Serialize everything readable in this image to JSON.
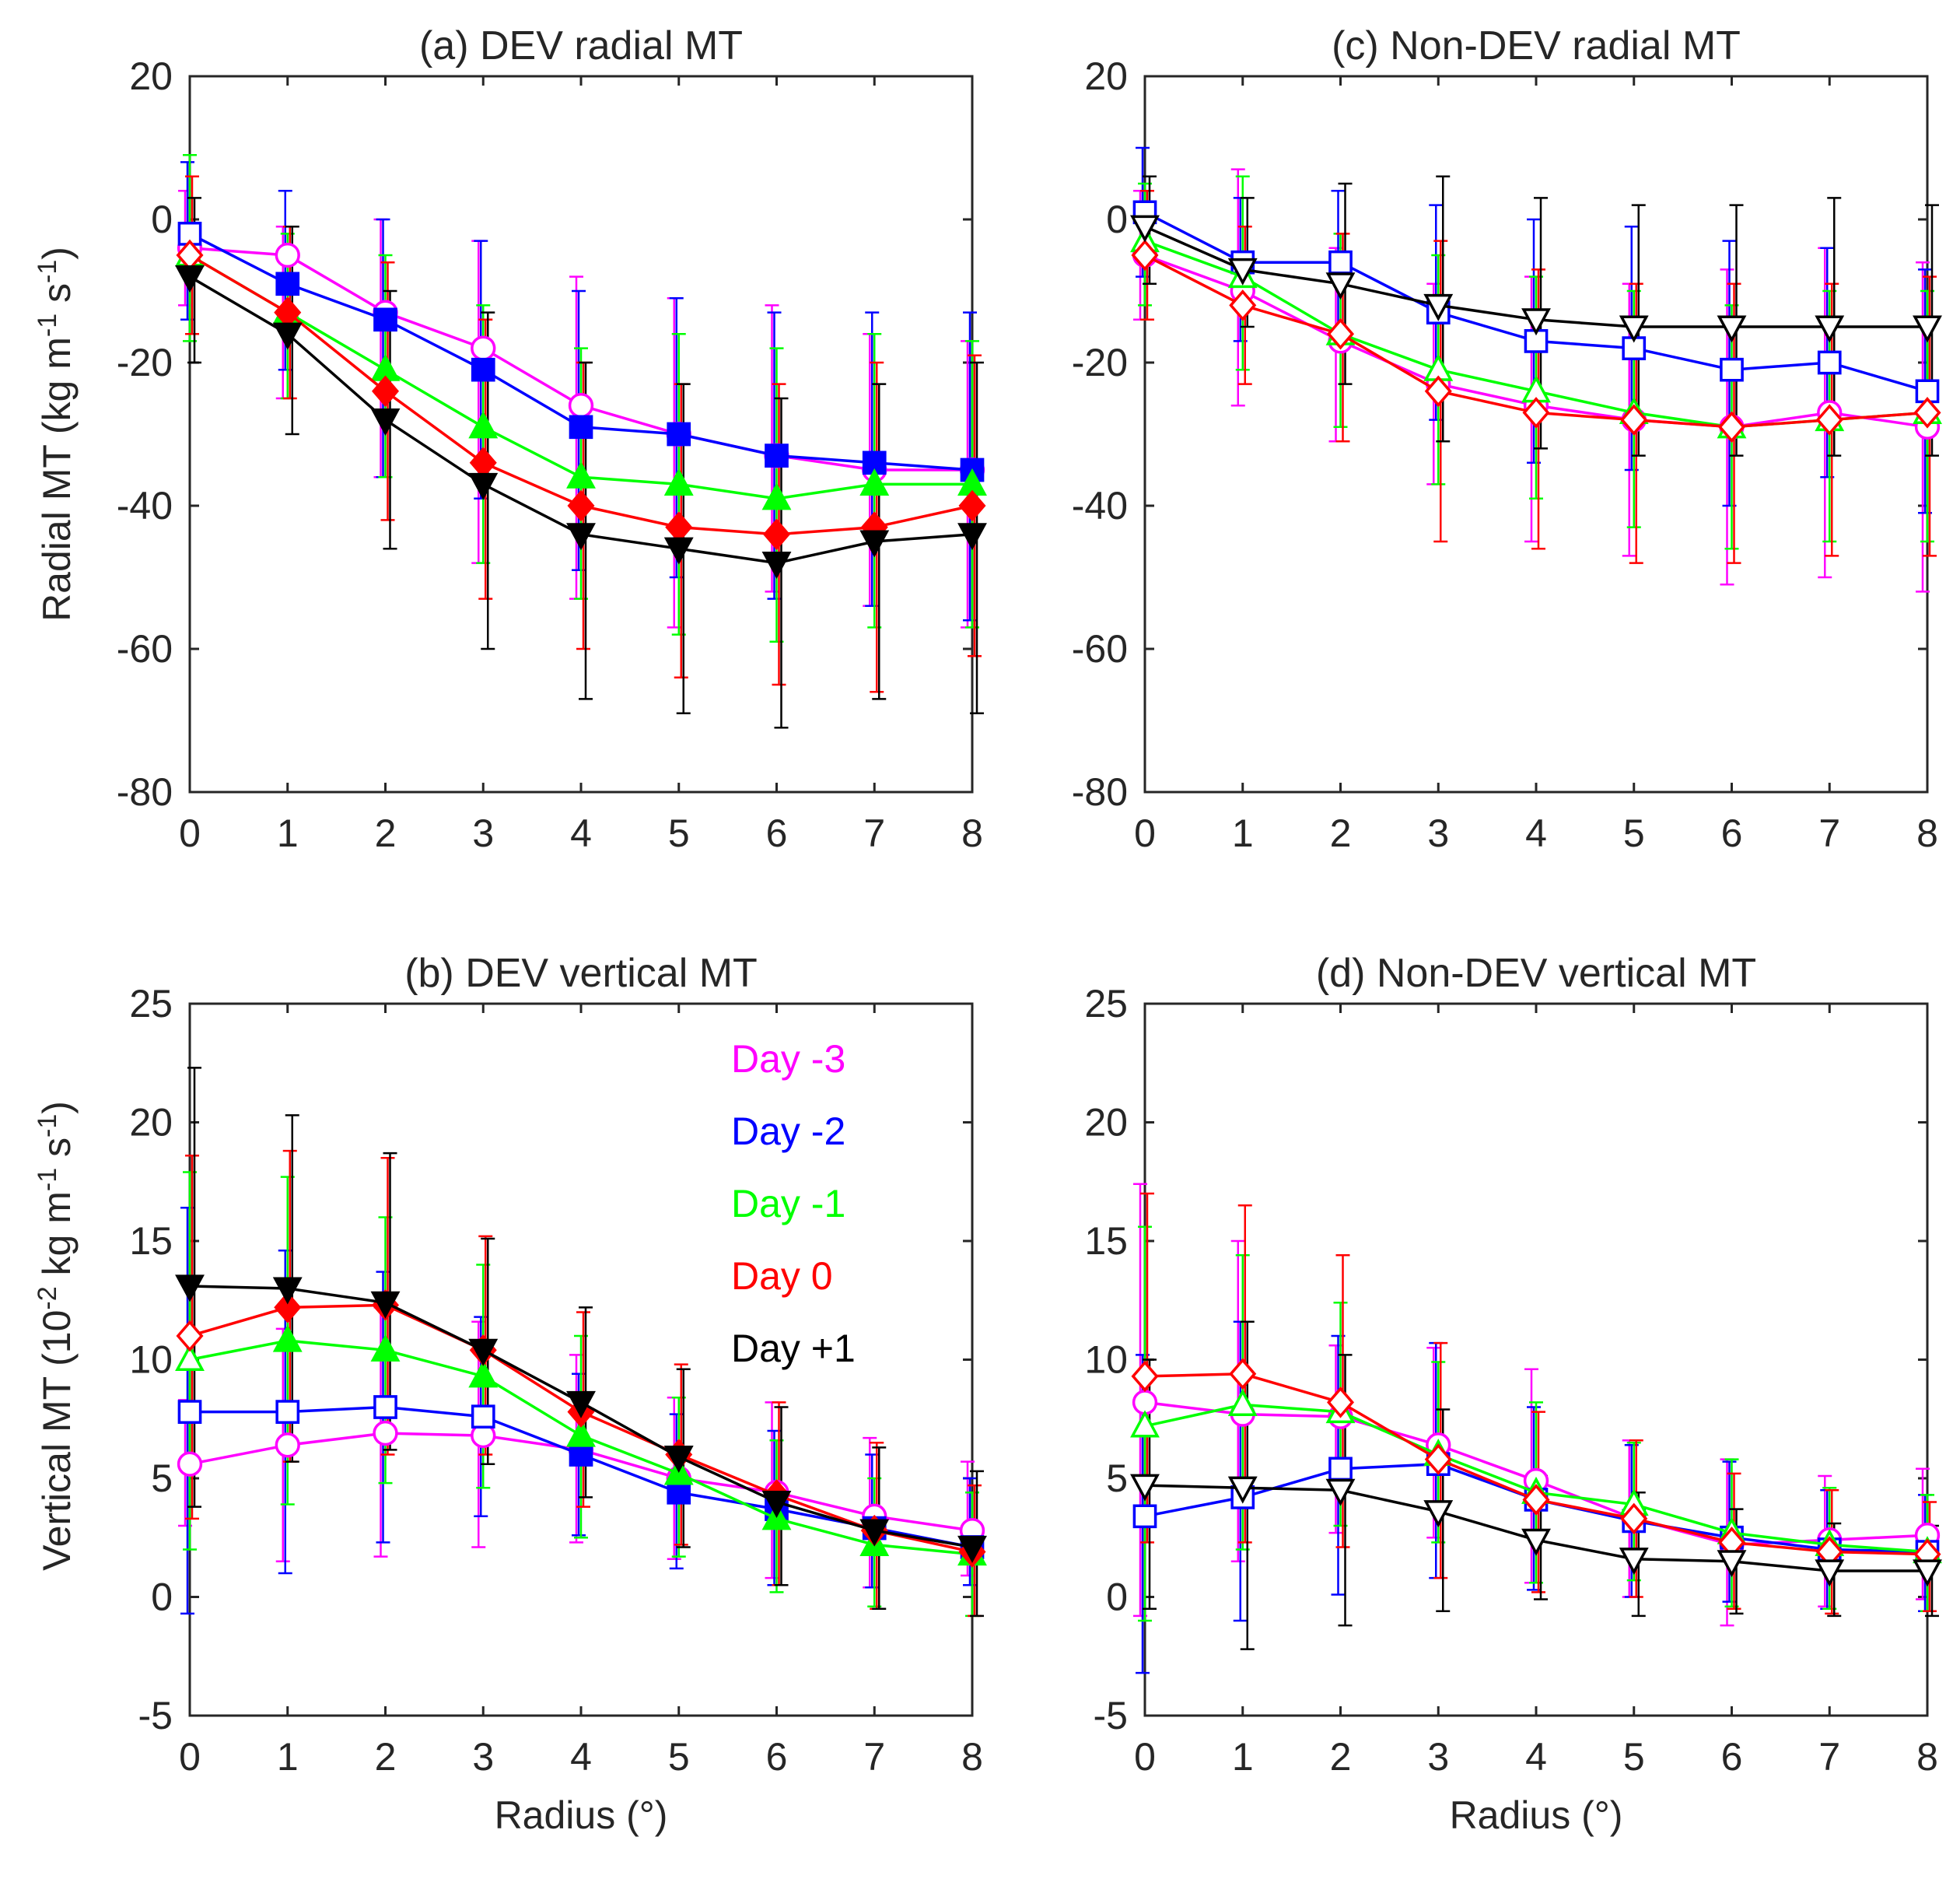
{
  "figure": {
    "ylabels": {
      "radial": {
        "prefix": "Radial MT (kg m",
        "sup1": "-1",
        "mid": " s",
        "sup2": "-1",
        "suffix": ")"
      },
      "vertical": {
        "prefix": "Vertical MT (10",
        "sup0": "-2",
        "mid0": " kg m",
        "sup1": "-1",
        "mid": " s",
        "sup2": "-1",
        "suffix": ")"
      }
    },
    "xlabel": "Radius (°)"
  },
  "chart_data": [
    {
      "id": "a",
      "type": "line",
      "title": "(a) DEV radial MT",
      "xlabel": "",
      "ylabel": "Radial MT (kg m-1 s-1)",
      "x": [
        0,
        1,
        2,
        3,
        4,
        5,
        6,
        7,
        8
      ],
      "xticks": [
        "0",
        "1",
        "2",
        "3",
        "4",
        "5",
        "6",
        "7",
        "8"
      ],
      "ylim": [
        -80,
        20
      ],
      "yticks": [
        -80,
        -60,
        -40,
        -20,
        0,
        20
      ],
      "series": [
        {
          "name": "Day -3",
          "color": "#ff00ff",
          "marker": "circle",
          "values": [
            -4,
            -5,
            -13,
            -18,
            -26,
            -30,
            -33,
            -35,
            -35
          ],
          "err_lo": [
            -12,
            -25,
            -36,
            -48,
            -53,
            -57,
            -52,
            -54,
            -57
          ],
          "err_hi": [
            4,
            -1,
            0,
            -3,
            -8,
            -11,
            -12,
            -16,
            -17
          ]
        },
        {
          "name": "Day -2",
          "color": "#0000ff",
          "marker": "square",
          "values": [
            -2,
            -9,
            -14,
            -21,
            -29,
            -30,
            -33,
            -34,
            -35
          ],
          "err_lo": [
            -14,
            -21,
            -36,
            -39,
            -49,
            -50,
            -53,
            -54,
            -56
          ],
          "err_hi": [
            8,
            4,
            0,
            -3,
            -10,
            -11,
            -13,
            -13,
            -13
          ]
        },
        {
          "name": "Day -1",
          "color": "#00ff00",
          "marker": "triangle-up",
          "values": [
            -5,
            -13,
            -21,
            -29,
            -36,
            -37,
            -39,
            -37,
            -37
          ],
          "err_lo": [
            -17,
            -25,
            -36,
            -48,
            -53,
            -58,
            -59,
            -57,
            -57
          ],
          "err_hi": [
            9,
            -2,
            -5,
            -12,
            -18,
            -16,
            -18,
            -16,
            -17
          ]
        },
        {
          "name": "Day 0",
          "color": "#ff0000",
          "marker": "diamond",
          "values": [
            -5,
            -13,
            -24,
            -34,
            -40,
            -43,
            -44,
            -43,
            -40
          ],
          "err_lo": [
            -16,
            -25,
            -42,
            -53,
            -60,
            -64,
            -65,
            -66,
            -61
          ],
          "err_hi": [
            6,
            -1,
            -6,
            -14,
            -20,
            -23,
            -23,
            -20,
            -19
          ]
        },
        {
          "name": "Day +1",
          "color": "#000000",
          "marker": "triangle-down",
          "values": [
            -8,
            -16,
            -28,
            -37,
            -44,
            -46,
            -48,
            -45,
            -44
          ],
          "err_lo": [
            -20,
            -30,
            -46,
            -60,
            -67,
            -69,
            -71,
            -67,
            -69
          ],
          "err_hi": [
            3,
            -1,
            -10,
            -13,
            -20,
            -23,
            -25,
            -23,
            -20
          ]
        }
      ]
    },
    {
      "id": "c",
      "type": "line",
      "title": "(c) Non-DEV radial MT",
      "xlabel": "",
      "ylabel": "",
      "x": [
        0,
        1,
        2,
        3,
        4,
        5,
        6,
        7,
        8
      ],
      "xticks": [
        "0",
        "1",
        "2",
        "3",
        "4",
        "5",
        "6",
        "7",
        "8"
      ],
      "ylim": [
        -80,
        20
      ],
      "yticks": [
        -80,
        -60,
        -40,
        -20,
        0,
        20
      ],
      "series": [
        {
          "name": "Day -3",
          "color": "#ff00ff",
          "marker": "circle",
          "values": [
            -5,
            -10,
            -17,
            -23,
            -26,
            -28,
            -29,
            -27,
            -29
          ],
          "err_lo": [
            -14,
            -26,
            -31,
            -37,
            -45,
            -47,
            -51,
            -50,
            -52
          ],
          "err_hi": [
            4,
            7,
            -4,
            -9,
            -8,
            -9,
            -7,
            -4,
            -6
          ]
        },
        {
          "name": "Day -2",
          "color": "#0000ff",
          "marker": "square",
          "values": [
            1,
            -6,
            -6,
            -13,
            -17,
            -18,
            -21,
            -20,
            -24
          ],
          "err_lo": [
            -8,
            -17,
            -17,
            -28,
            -34,
            -35,
            -40,
            -36,
            -41
          ],
          "err_hi": [
            10,
            3,
            4,
            2,
            0,
            -1,
            -3,
            -4,
            -7
          ]
        },
        {
          "name": "Day -1",
          "color": "#00ff00",
          "marker": "triangle-up",
          "values": [
            -3,
            -8,
            -16,
            -21,
            -24,
            -27,
            -29,
            -28,
            -27
          ],
          "err_lo": [
            -12,
            -21,
            -29,
            -37,
            -39,
            -43,
            -46,
            -45,
            -45
          ],
          "err_hi": [
            5,
            6,
            -2,
            -5,
            -8,
            -10,
            -12,
            -10,
            -10
          ]
        },
        {
          "name": "Day 0",
          "color": "#ff0000",
          "marker": "diamond",
          "values": [
            -5,
            -12,
            -16,
            -24,
            -27,
            -28,
            -29,
            -28,
            -27
          ],
          "err_lo": [
            -14,
            -23,
            -31,
            -45,
            -46,
            -48,
            -48,
            -47,
            -47
          ],
          "err_hi": [
            4,
            -1,
            -2,
            -3,
            -7,
            -9,
            -9,
            -9,
            -8
          ]
        },
        {
          "name": "Day +1",
          "color": "#000000",
          "marker": "triangle-down",
          "values": [
            -1,
            -7,
            -9,
            -12,
            -14,
            -15,
            -15,
            -15,
            -15
          ],
          "err_lo": [
            -9,
            -15,
            -23,
            -31,
            -32,
            -33,
            -33,
            -33,
            -33
          ],
          "err_hi": [
            6,
            3,
            5,
            6,
            3,
            2,
            2,
            3,
            2
          ]
        }
      ]
    },
    {
      "id": "b",
      "type": "line",
      "title": "(b) DEV vertical MT",
      "xlabel": "Radius (°)",
      "ylabel": "Vertical MT (10-2 kg m-1 s-1)",
      "x": [
        0,
        1,
        2,
        3,
        4,
        5,
        6,
        7,
        8
      ],
      "xticks": [
        "0",
        "1",
        "2",
        "3",
        "4",
        "5",
        "6",
        "7",
        "8"
      ],
      "ylim": [
        -5,
        25
      ],
      "yticks": [
        -5,
        0,
        5,
        10,
        15,
        20,
        25
      ],
      "series": [
        {
          "name": "Day -3",
          "color": "#ff00ff",
          "marker": "circle",
          "values": [
            5.6,
            6.4,
            6.9,
            6.8,
            6.2,
            5,
            4.4,
            3.4,
            2.8
          ],
          "err_lo": [
            3,
            1.5,
            1.7,
            2.1,
            2.3,
            1.6,
            0.8,
            0.4,
            0.9
          ],
          "err_hi": [
            8.3,
            11.3,
            12.2,
            11.6,
            10.2,
            8.4,
            8.2,
            6.7,
            5.7
          ]
        },
        {
          "name": "Day -2",
          "color": "#0000ff",
          "marker": "square",
          "values": [
            7.8,
            7.8,
            8,
            7.6,
            6,
            4.4,
            3.7,
            2.9,
            2.1
          ],
          "err_lo": [
            -0.7,
            1,
            2.3,
            3.4,
            2.6,
            1.2,
            0.5,
            0.4,
            0.5
          ],
          "err_hi": [
            16.4,
            14.6,
            13.7,
            11.8,
            9.4,
            7.7,
            7,
            6,
            5
          ]
        },
        {
          "name": "Day -1",
          "color": "#00ff00",
          "marker": "triangle-up",
          "values": [
            10,
            10.8,
            10.4,
            9.3,
            6.8,
            5.2,
            3.3,
            2.2,
            1.8
          ],
          "err_lo": [
            2,
            3.9,
            4.8,
            4.6,
            2.5,
            1.7,
            0.2,
            -0.4,
            -0.8
          ],
          "err_hi": [
            17.9,
            17.7,
            16,
            14,
            11,
            8.4,
            6.6,
            5,
            4.4
          ]
        },
        {
          "name": "Day 0",
          "color": "#ff0000",
          "marker": "diamond",
          "values": [
            11,
            12.2,
            12.3,
            10.4,
            7.8,
            6,
            4.3,
            2.8,
            1.9
          ],
          "err_lo": [
            3.3,
            5.7,
            6,
            6,
            3.8,
            2.2,
            0.5,
            -0.5,
            -0.8
          ],
          "err_hi": [
            18.6,
            18.8,
            18.5,
            15.2,
            12,
            9.8,
            8.2,
            6.5,
            4.7
          ]
        },
        {
          "name": "Day +1",
          "color": "#000000",
          "marker": "triangle-down",
          "values": [
            13.1,
            13,
            12.4,
            10.4,
            8.2,
            5.9,
            4,
            2.8,
            2.1
          ],
          "err_lo": [
            3.8,
            5.7,
            6.2,
            5.6,
            4.2,
            2.1,
            0.5,
            -0.5,
            -0.8
          ],
          "err_hi": [
            22.3,
            20.3,
            18.7,
            15.1,
            12.2,
            9.6,
            8,
            6.3,
            5.3
          ]
        }
      ],
      "legend": {
        "position": "top-right",
        "entries": [
          "Day -3",
          "Day -2",
          "Day -1",
          "Day 0",
          "Day +1"
        ]
      }
    },
    {
      "id": "d",
      "type": "line",
      "title": "(d) Non-DEV vertical MT",
      "xlabel": "Radius (°)",
      "ylabel": "",
      "x": [
        0,
        1,
        2,
        3,
        4,
        5,
        6,
        7,
        8
      ],
      "xticks": [
        "0",
        "1",
        "2",
        "3",
        "4",
        "5",
        "6",
        "7",
        "8"
      ],
      "ylim": [
        -5,
        25
      ],
      "yticks": [
        -5,
        0,
        5,
        10,
        15,
        20,
        25
      ],
      "series": [
        {
          "name": "Day -3",
          "color": "#ff00ff",
          "marker": "circle",
          "values": [
            8.2,
            7.7,
            7.6,
            6.4,
            4.9,
            3.3,
            2.2,
            2.4,
            2.6
          ],
          "err_lo": [
            -0.8,
            1.5,
            2.7,
            2.5,
            0.6,
            0,
            -1.2,
            -0.4,
            -0.1
          ],
          "err_hi": [
            17.4,
            15,
            10.6,
            10.5,
            9.6,
            6.6,
            5.8,
            5.1,
            5.4
          ]
        },
        {
          "name": "Day -2",
          "color": "#0000ff",
          "marker": "square",
          "values": [
            3.4,
            4.2,
            5.4,
            5.6,
            4.1,
            3.2,
            2.5,
            2,
            1.9
          ],
          "err_lo": [
            -3.2,
            -1,
            0.1,
            0.8,
            0.3,
            0,
            -0.2,
            -0.5,
            -0.6
          ],
          "err_hi": [
            10.2,
            11.6,
            11,
            10.7,
            8,
            6.4,
            5.7,
            4.5,
            4.3
          ]
        },
        {
          "name": "Day -1",
          "color": "#00ff00",
          "marker": "triangle-up",
          "values": [
            7.2,
            8.1,
            7.8,
            6,
            4.4,
            3.9,
            2.7,
            2.2,
            1.9
          ],
          "err_lo": [
            -1,
            2,
            3,
            2.3,
            0.6,
            0.7,
            -0.4,
            -0.5,
            -0.6
          ],
          "err_hi": [
            15.6,
            14.4,
            12.4,
            9.9,
            8.2,
            6.5,
            5.8,
            4.6,
            4.3
          ]
        },
        {
          "name": "Day 0",
          "color": "#ff0000",
          "marker": "diamond",
          "values": [
            9.3,
            9.4,
            8.2,
            5.8,
            4.1,
            3.3,
            2.3,
            1.9,
            1.8
          ],
          "err_lo": [
            2.3,
            2.3,
            2.1,
            0.8,
            0.2,
            0,
            -0.5,
            -0.7,
            -0.6
          ],
          "err_hi": [
            17,
            16.5,
            14.4,
            10.7,
            7.8,
            6.6,
            5.2,
            4.5,
            4
          ]
        },
        {
          "name": "Day +1",
          "color": "#000000",
          "marker": "triangle-down",
          "values": [
            4.7,
            4.6,
            4.5,
            3.6,
            2.4,
            1.6,
            1.5,
            1.1,
            1.1
          ],
          "err_lo": [
            -0.5,
            -2.2,
            -1.2,
            -0.6,
            -0.1,
            -0.8,
            -0.7,
            -0.8,
            -0.8
          ],
          "err_hi": [
            10,
            11.6,
            10.2,
            7.9,
            5.1,
            4.4,
            3.7,
            3.1,
            3
          ]
        }
      ]
    }
  ]
}
